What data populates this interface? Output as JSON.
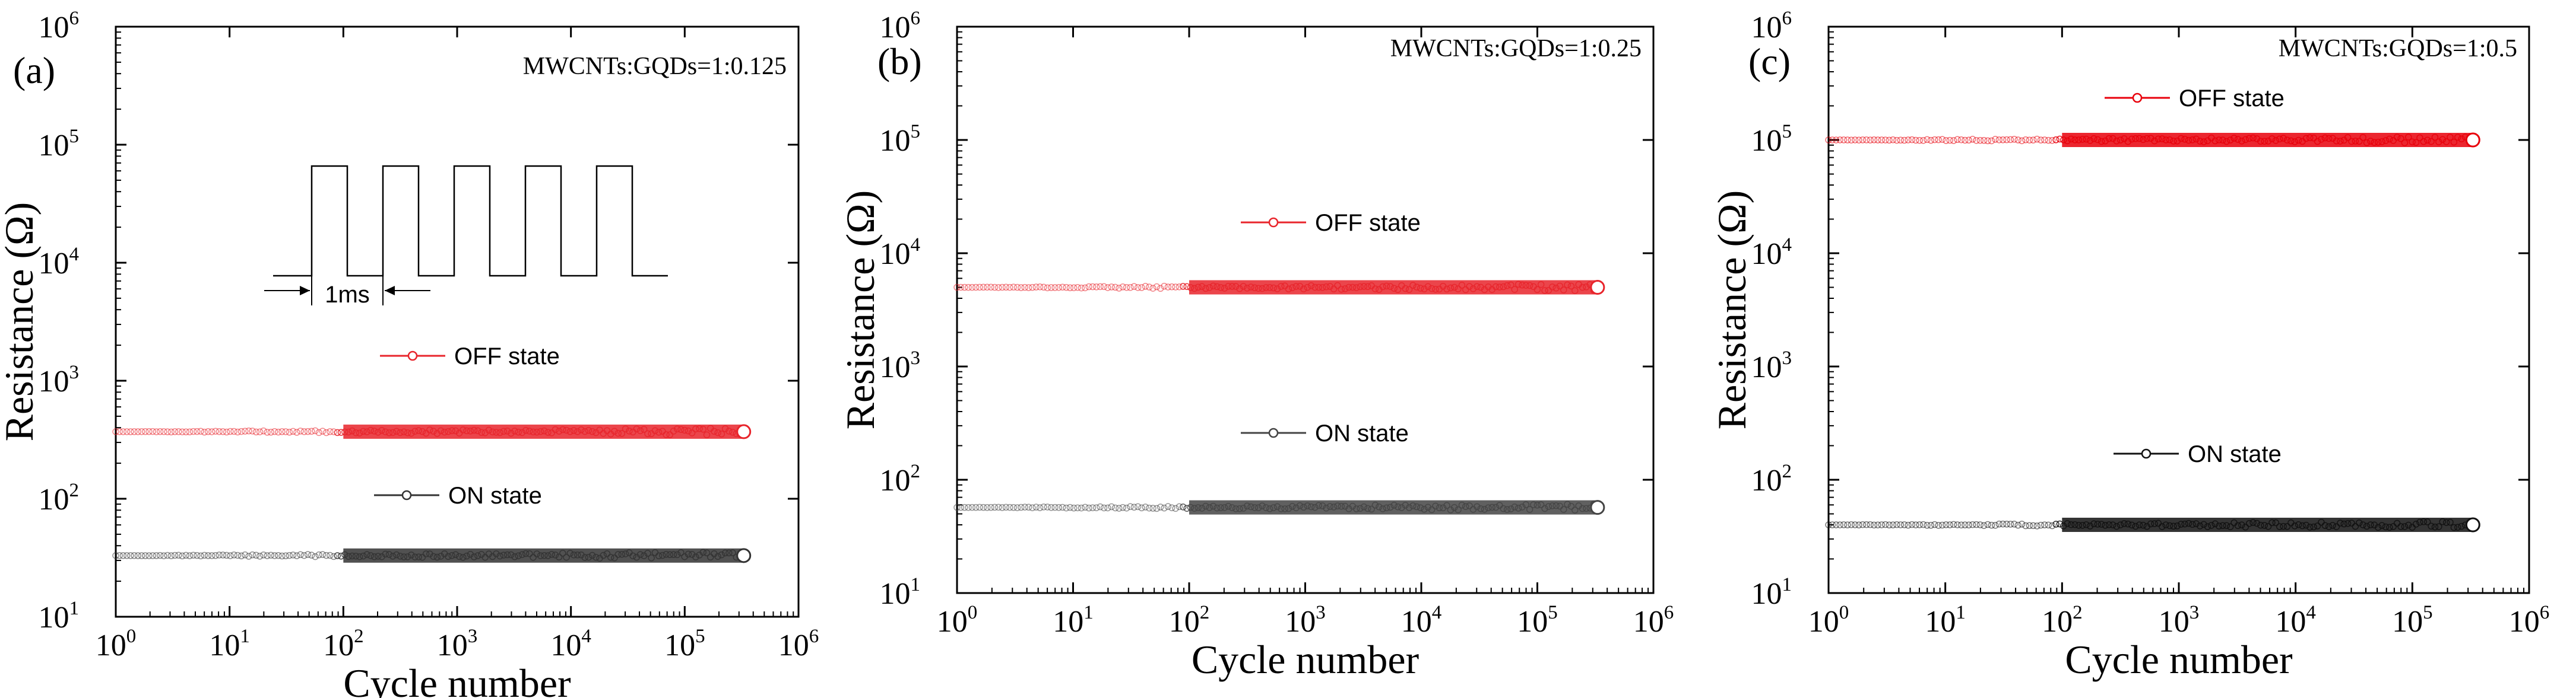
{
  "chart_data": [
    {
      "type": "scatter",
      "panel": "(a)",
      "annotation": "MWCNTs:GQDs=1:0.125",
      "xlabel": "Cycle number",
      "ylabel": "Resistance (Ω)",
      "xscale": "log",
      "yscale": "log",
      "xlim": [
        1,
        1000000
      ],
      "ylim": [
        10,
        1000000
      ],
      "x_ticks": [
        {
          "base": "10",
          "exp": "0"
        },
        {
          "base": "10",
          "exp": "1"
        },
        {
          "base": "10",
          "exp": "2"
        },
        {
          "base": "10",
          "exp": "3"
        },
        {
          "base": "10",
          "exp": "4"
        },
        {
          "base": "10",
          "exp": "5"
        },
        {
          "base": "10",
          "exp": "6"
        }
      ],
      "y_ticks": [
        {
          "base": "10",
          "exp": "1"
        },
        {
          "base": "10",
          "exp": "2"
        },
        {
          "base": "10",
          "exp": "3"
        },
        {
          "base": "10",
          "exp": "4"
        },
        {
          "base": "10",
          "exp": "5"
        },
        {
          "base": "10",
          "exp": "6"
        }
      ],
      "series": [
        {
          "name": "OFF state",
          "color": "#e8242b",
          "x_range": [
            1,
            330000
          ],
          "value": 370
        },
        {
          "name": "ON state",
          "color": "#333333",
          "x_range": [
            1,
            330000
          ],
          "value": 33
        }
      ],
      "inset": {
        "label": "1ms",
        "description": "square pulse train"
      }
    },
    {
      "type": "scatter",
      "panel": "(b)",
      "annotation": "MWCNTs:GQDs=1:0.25",
      "xlabel": "Cycle number",
      "ylabel": "Resistance (Ω)",
      "xscale": "log",
      "yscale": "log",
      "xlim": [
        1,
        1000000
      ],
      "ylim": [
        10,
        1000000
      ],
      "x_ticks": [
        {
          "base": "10",
          "exp": "0"
        },
        {
          "base": "10",
          "exp": "1"
        },
        {
          "base": "10",
          "exp": "2"
        },
        {
          "base": "10",
          "exp": "3"
        },
        {
          "base": "10",
          "exp": "4"
        },
        {
          "base": "10",
          "exp": "5"
        },
        {
          "base": "10",
          "exp": "6"
        }
      ],
      "y_ticks": [
        {
          "base": "10",
          "exp": "1"
        },
        {
          "base": "10",
          "exp": "2"
        },
        {
          "base": "10",
          "exp": "3"
        },
        {
          "base": "10",
          "exp": "4"
        },
        {
          "base": "10",
          "exp": "5"
        },
        {
          "base": "10",
          "exp": "6"
        }
      ],
      "series": [
        {
          "name": "OFF state",
          "color": "#e8242b",
          "x_range": [
            1,
            330000
          ],
          "value": 5000
        },
        {
          "name": "ON state",
          "color": "#444444",
          "x_range": [
            1,
            330000
          ],
          "value": 57
        }
      ]
    },
    {
      "type": "scatter",
      "panel": "(c)",
      "annotation": "MWCNTs:GQDs=1:0.5",
      "xlabel": "Cycle number",
      "ylabel": "Resistance (Ω)",
      "xscale": "log",
      "yscale": "log",
      "xlim": [
        1,
        1000000
      ],
      "ylim": [
        10,
        1000000
      ],
      "x_ticks": [
        {
          "base": "10",
          "exp": "0"
        },
        {
          "base": "10",
          "exp": "1"
        },
        {
          "base": "10",
          "exp": "2"
        },
        {
          "base": "10",
          "exp": "3"
        },
        {
          "base": "10",
          "exp": "4"
        },
        {
          "base": "10",
          "exp": "5"
        },
        {
          "base": "10",
          "exp": "6"
        }
      ],
      "y_ticks": [
        {
          "base": "10",
          "exp": "1"
        },
        {
          "base": "10",
          "exp": "2"
        },
        {
          "base": "10",
          "exp": "3"
        },
        {
          "base": "10",
          "exp": "4"
        },
        {
          "base": "10",
          "exp": "5"
        },
        {
          "base": "10",
          "exp": "6"
        }
      ],
      "series": [
        {
          "name": "OFF state",
          "color": "#e8000b",
          "x_range": [
            1,
            330000
          ],
          "value": 100000
        },
        {
          "name": "ON state",
          "color": "#111111",
          "x_range": [
            1,
            330000
          ],
          "value": 40
        }
      ]
    }
  ]
}
